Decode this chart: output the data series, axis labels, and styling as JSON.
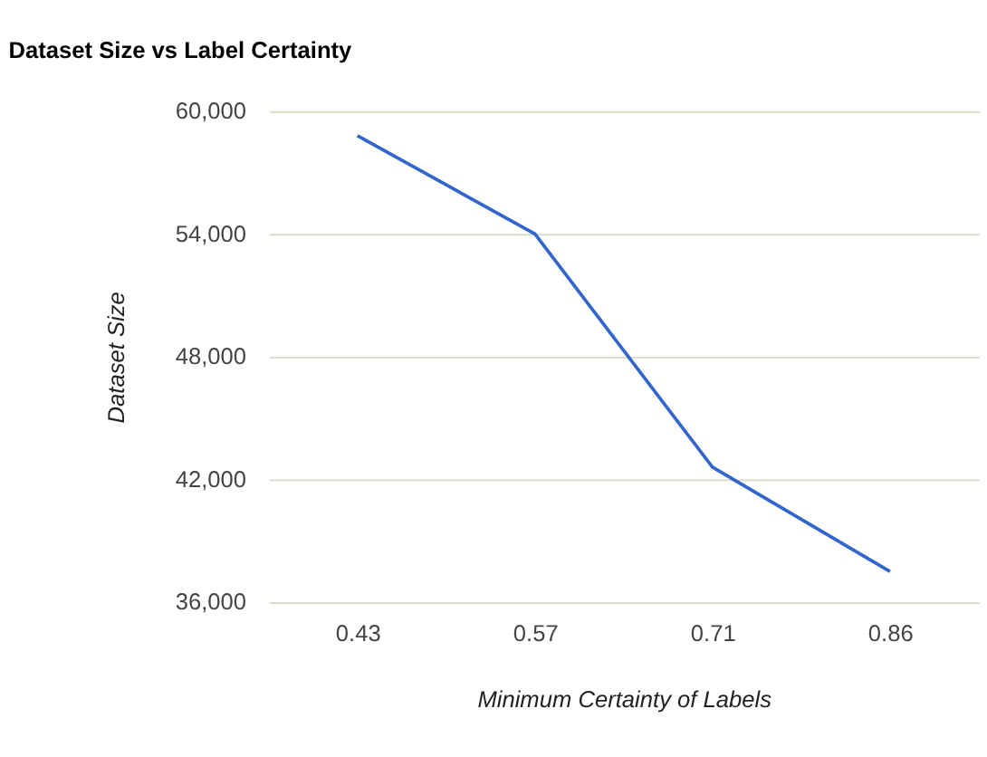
{
  "chart_data": {
    "type": "line",
    "title": "Dataset Size vs Label Certainty",
    "xlabel": "Minimum Certainty of Labels",
    "ylabel": "Dataset Size",
    "categories": [
      "0.43",
      "0.57",
      "0.71",
      "0.86"
    ],
    "series": [
      {
        "color": "#3366cc",
        "values": [
          58800,
          54000,
          42600,
          37500
        ]
      }
    ],
    "ylim": [
      36000,
      60000
    ],
    "yticks": [
      {
        "value": 36000,
        "label": "36,000"
      },
      {
        "value": 42000,
        "label": "42,000"
      },
      {
        "value": 48000,
        "label": "48,000"
      },
      {
        "value": 54000,
        "label": "54,000"
      },
      {
        "value": 60000,
        "label": "60,000"
      }
    ],
    "grid": "y",
    "legend": false,
    "marker": "none",
    "line_style": "solid"
  }
}
